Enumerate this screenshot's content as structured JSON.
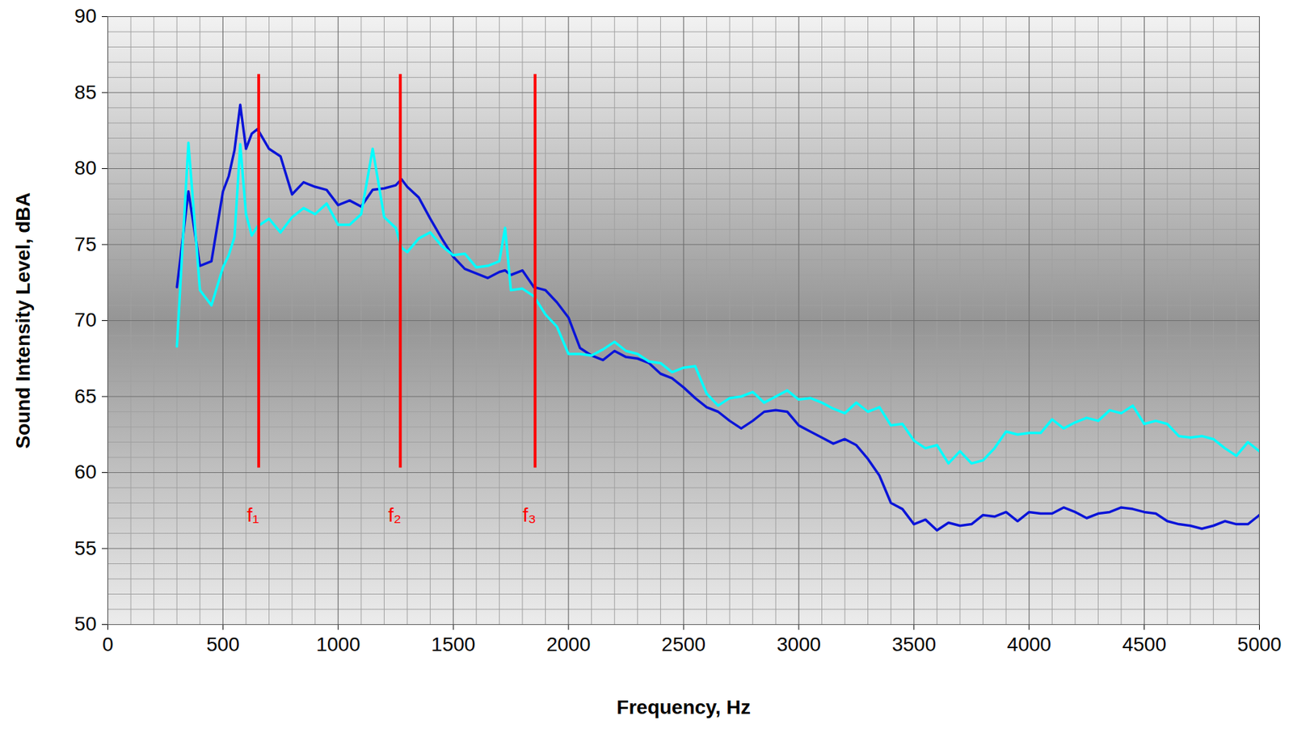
{
  "chart_data": {
    "type": "line",
    "x_label": "Frequency, Hz",
    "y_label": "Sound Intensity Level, dBA",
    "xlim": [
      0,
      5000
    ],
    "ylim": [
      50,
      90
    ],
    "xticks": [
      0,
      500,
      1000,
      1500,
      2000,
      2500,
      3000,
      3500,
      4000,
      4500,
      5000
    ],
    "yticks": [
      50,
      55,
      60,
      65,
      70,
      75,
      80,
      85,
      90
    ],
    "grid": true,
    "x": [
      300,
      350,
      400,
      450,
      500,
      525,
      550,
      575,
      600,
      625,
      650,
      700,
      750,
      800,
      850,
      900,
      950,
      1000,
      1050,
      1100,
      1150,
      1200,
      1250,
      1275,
      1300,
      1350,
      1400,
      1450,
      1500,
      1550,
      1600,
      1650,
      1700,
      1725,
      1750,
      1800,
      1850,
      1900,
      1950,
      2000,
      2050,
      2100,
      2150,
      2200,
      2250,
      2300,
      2350,
      2400,
      2450,
      2500,
      2550,
      2600,
      2650,
      2700,
      2750,
      2800,
      2850,
      2900,
      2950,
      3000,
      3050,
      3100,
      3150,
      3200,
      3250,
      3300,
      3350,
      3400,
      3450,
      3500,
      3550,
      3600,
      3650,
      3700,
      3750,
      3800,
      3850,
      3900,
      3950,
      4000,
      4050,
      4100,
      4150,
      4200,
      4250,
      4300,
      4350,
      4400,
      4450,
      4500,
      4550,
      4600,
      4650,
      4700,
      4750,
      4800,
      4850,
      4900,
      4950,
      5000
    ],
    "series": [
      {
        "color": "#0a14d8",
        "values": [
          72.2,
          78.5,
          73.6,
          73.9,
          78.5,
          79.5,
          81.2,
          84.2,
          81.3,
          82.3,
          82.6,
          81.3,
          80.8,
          78.3,
          79.1,
          78.8,
          78.6,
          77.6,
          77.9,
          77.5,
          78.6,
          78.7,
          78.9,
          79.3,
          78.8,
          78.1,
          76.7,
          75.4,
          74.2,
          73.4,
          73.1,
          72.8,
          73.2,
          73.3,
          73.0,
          73.3,
          72.2,
          72.0,
          71.2,
          70.2,
          68.2,
          67.7,
          67.4,
          68.0,
          67.6,
          67.5,
          67.2,
          66.5,
          66.2,
          65.6,
          64.9,
          64.3,
          64.0,
          63.4,
          62.9,
          63.4,
          64.0,
          64.1,
          64.0,
          63.1,
          62.7,
          62.3,
          61.9,
          62.2,
          61.8,
          60.9,
          59.8,
          58.0,
          57.6,
          56.6,
          56.9,
          56.2,
          56.7,
          56.5,
          56.6,
          57.2,
          57.1,
          57.4,
          56.8,
          57.4,
          57.3,
          57.3,
          57.7,
          57.4,
          57.0,
          57.3,
          57.4,
          57.7,
          57.6,
          57.4,
          57.3,
          56.8,
          56.6,
          56.5,
          56.3,
          56.5,
          56.8,
          56.6,
          56.6,
          57.2
        ]
      },
      {
        "color": "#00ffff",
        "values": [
          68.3,
          81.7,
          72.0,
          71.0,
          73.5,
          74.3,
          75.5,
          81.6,
          77.0,
          75.6,
          76.2,
          76.7,
          75.8,
          76.8,
          77.4,
          77.0,
          77.7,
          76.3,
          76.3,
          77.0,
          81.3,
          76.8,
          76.1,
          74.8,
          74.5,
          75.4,
          75.8,
          74.9,
          74.3,
          74.4,
          73.5,
          73.6,
          73.9,
          76.1,
          72.0,
          72.1,
          71.6,
          70.4,
          69.6,
          67.8,
          67.8,
          67.7,
          68.1,
          68.6,
          68.0,
          67.8,
          67.3,
          67.2,
          66.6,
          66.9,
          67.0,
          65.2,
          64.4,
          64.9,
          65.0,
          65.3,
          64.6,
          65.0,
          65.4,
          64.8,
          64.9,
          64.6,
          64.2,
          63.9,
          64.6,
          64.0,
          64.3,
          63.1,
          63.2,
          62.1,
          61.6,
          61.8,
          60.6,
          61.4,
          60.6,
          60.8,
          61.6,
          62.7,
          62.5,
          62.6,
          62.6,
          63.5,
          62.9,
          63.3,
          63.6,
          63.4,
          64.1,
          63.9,
          64.4,
          63.2,
          63.4,
          63.2,
          62.4,
          62.3,
          62.4,
          62.2,
          61.6,
          61.1,
          62.0,
          61.4
        ]
      }
    ],
    "vlines": {
      "x": [
        655,
        1270,
        1855
      ],
      "y": [
        60.3,
        86.2
      ],
      "labels": [
        "f₁",
        "f₂",
        "f₃"
      ],
      "label_y": 57.2,
      "color": "#ff0000"
    }
  }
}
